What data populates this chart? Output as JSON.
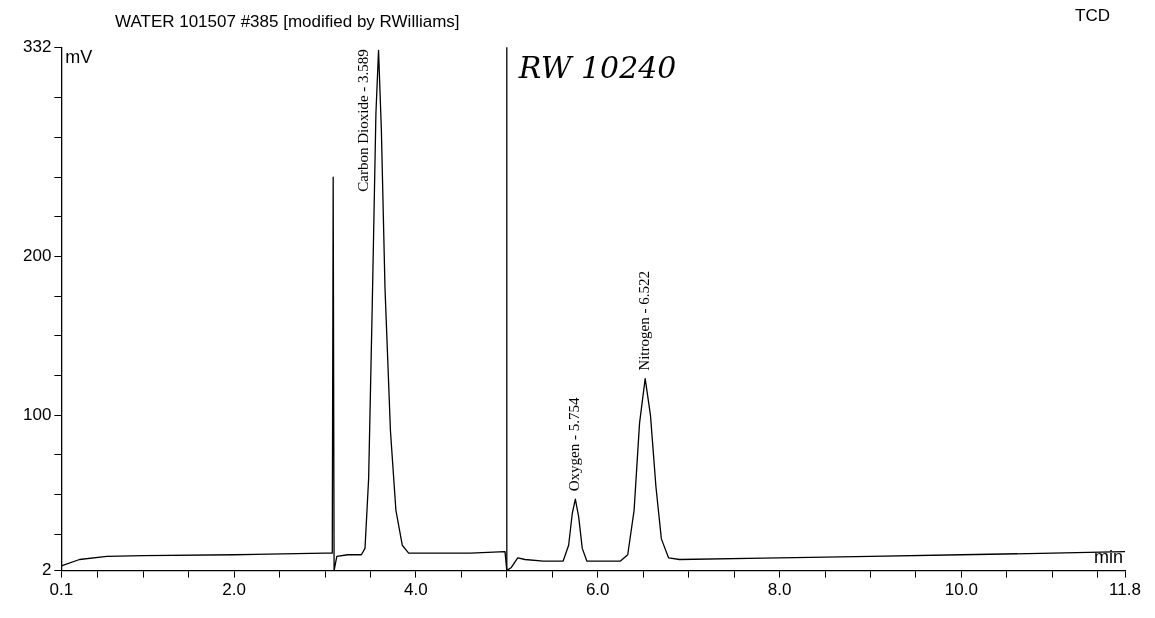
{
  "chart_data": {
    "type": "line",
    "title": "WATER 101507 #385 [modified by RWilliams]",
    "subtitle": "TCD",
    "xlabel": "min",
    "ylabel": "mV",
    "x": [
      0.1,
      0.3,
      0.6,
      1.0,
      2.0,
      3.0,
      3.08,
      3.09,
      3.1,
      3.13,
      3.25,
      3.4,
      3.44,
      3.48,
      3.52,
      3.56,
      3.589,
      3.62,
      3.66,
      3.72,
      3.78,
      3.85,
      3.92,
      4.2,
      4.6,
      4.98,
      5.0,
      5.05,
      5.12,
      5.2,
      5.4,
      5.62,
      5.68,
      5.72,
      5.754,
      5.79,
      5.83,
      5.88,
      6.25,
      6.33,
      6.4,
      6.46,
      6.522,
      6.58,
      6.64,
      6.7,
      6.78,
      6.9,
      8.0,
      9.0,
      10.0,
      11.0,
      11.8
    ],
    "series": [
      {
        "color": "#000000",
        "values": [
          5,
          9,
          11,
          11.5,
          12,
          13,
          13,
          250,
          2,
          11,
          12,
          12,
          16,
          60,
          170,
          290,
          330,
          280,
          180,
          90,
          40,
          18,
          13,
          13,
          13,
          14,
          2,
          4,
          10,
          9,
          8,
          8,
          18,
          38,
          47,
          36,
          16,
          8,
          8,
          12,
          40,
          95,
          123,
          100,
          55,
          22,
          10,
          9,
          10,
          11,
          12,
          13,
          14
        ]
      }
    ],
    "xlim": [
      0.1,
      11.8
    ],
    "ylim": [
      2,
      332
    ],
    "xticks": [
      0.1,
      {
        "value": 0.5,
        "label": null
      },
      {
        "value": 1.0,
        "label": null
      },
      {
        "value": 1.5,
        "label": null
      },
      {
        "value": 2.0,
        "label": "2.0"
      },
      {
        "value": 2.5,
        "label": null
      },
      {
        "value": 3.0,
        "label": null
      },
      {
        "value": 3.5,
        "label": null
      },
      {
        "value": 4.0,
        "label": "4.0"
      },
      {
        "value": 4.5,
        "label": null
      },
      {
        "value": 5.0,
        "label": null
      },
      {
        "value": 5.5,
        "label": null
      },
      {
        "value": 6.0,
        "label": "6.0"
      },
      {
        "value": 6.5,
        "label": null
      },
      {
        "value": 7.0,
        "label": null
      },
      {
        "value": 7.5,
        "label": null
      },
      {
        "value": 8.0,
        "label": "8.0"
      },
      {
        "value": 8.5,
        "label": null
      },
      {
        "value": 9.0,
        "label": null
      },
      {
        "value": 9.5,
        "label": null
      },
      {
        "value": 10.0,
        "label": "10.0"
      },
      {
        "value": 10.5,
        "label": null
      },
      {
        "value": 11.0,
        "label": null
      },
      {
        "value": 11.5,
        "label": null
      },
      11.8
    ],
    "yticks": [
      2,
      {
        "value": 25,
        "label": null
      },
      {
        "value": 50,
        "label": null
      },
      {
        "value": 75,
        "label": null
      },
      100,
      {
        "value": 125,
        "label": null
      },
      {
        "value": 150,
        "label": null
      },
      {
        "value": 175,
        "label": null
      },
      200,
      {
        "value": 225,
        "label": null
      },
      {
        "value": 250,
        "label": null
      },
      {
        "value": 275,
        "label": null
      },
      {
        "value": 300,
        "label": null
      },
      332
    ],
    "grid": false,
    "legend": false,
    "marker": "none",
    "line_style": "solid",
    "ref_lines": [
      {
        "axis": "x",
        "value": 5.0,
        "color": "#000000"
      }
    ],
    "annotations": [
      {
        "text": "Carbon Dioxide - 3.589",
        "x": 3.589,
        "y": 330
      },
      {
        "text": "Oxygen - 5.754",
        "x": 5.754,
        "y": 47
      },
      {
        "text": "Nitrogen - 6.522",
        "x": 6.522,
        "y": 123
      },
      "RW 10240"
    ]
  }
}
